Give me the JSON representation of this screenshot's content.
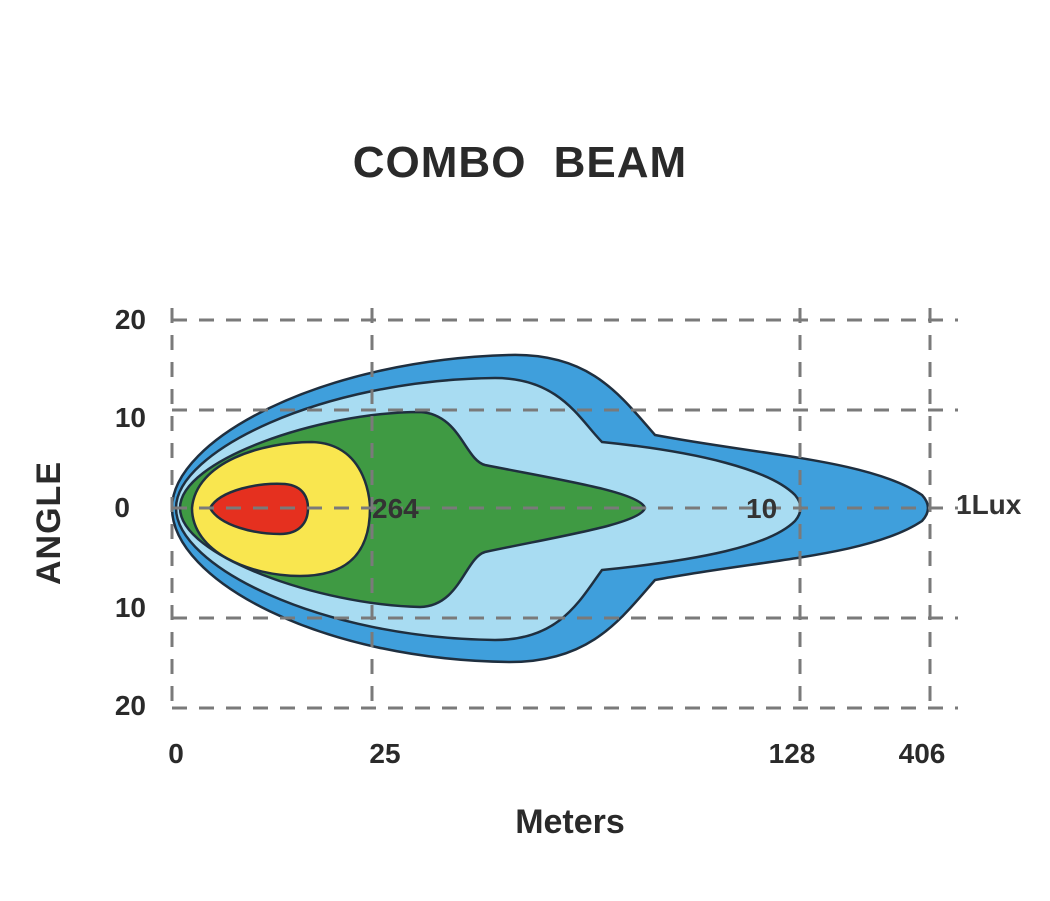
{
  "diagram": {
    "title": "COMBO  BEAM",
    "y_axis_title": "ANGLE",
    "x_axis_title": "Meters",
    "y_ticks": [
      "20",
      "10",
      "0",
      "10",
      "20"
    ],
    "x_ticks": [
      "0",
      "25",
      "128",
      "406"
    ],
    "contour_labels": {
      "inner": "264",
      "middle": "10",
      "outer": "1Lux"
    },
    "colors": {
      "outer_contour": "#3f9fdc",
      "light_contour": "#a8dcf2",
      "green_contour": "#3f9a43",
      "yellow_contour": "#f9e64f",
      "red_contour": "#e5301f",
      "grid": "#7a7a7a",
      "outline": "#1f2f3f"
    }
  }
}
